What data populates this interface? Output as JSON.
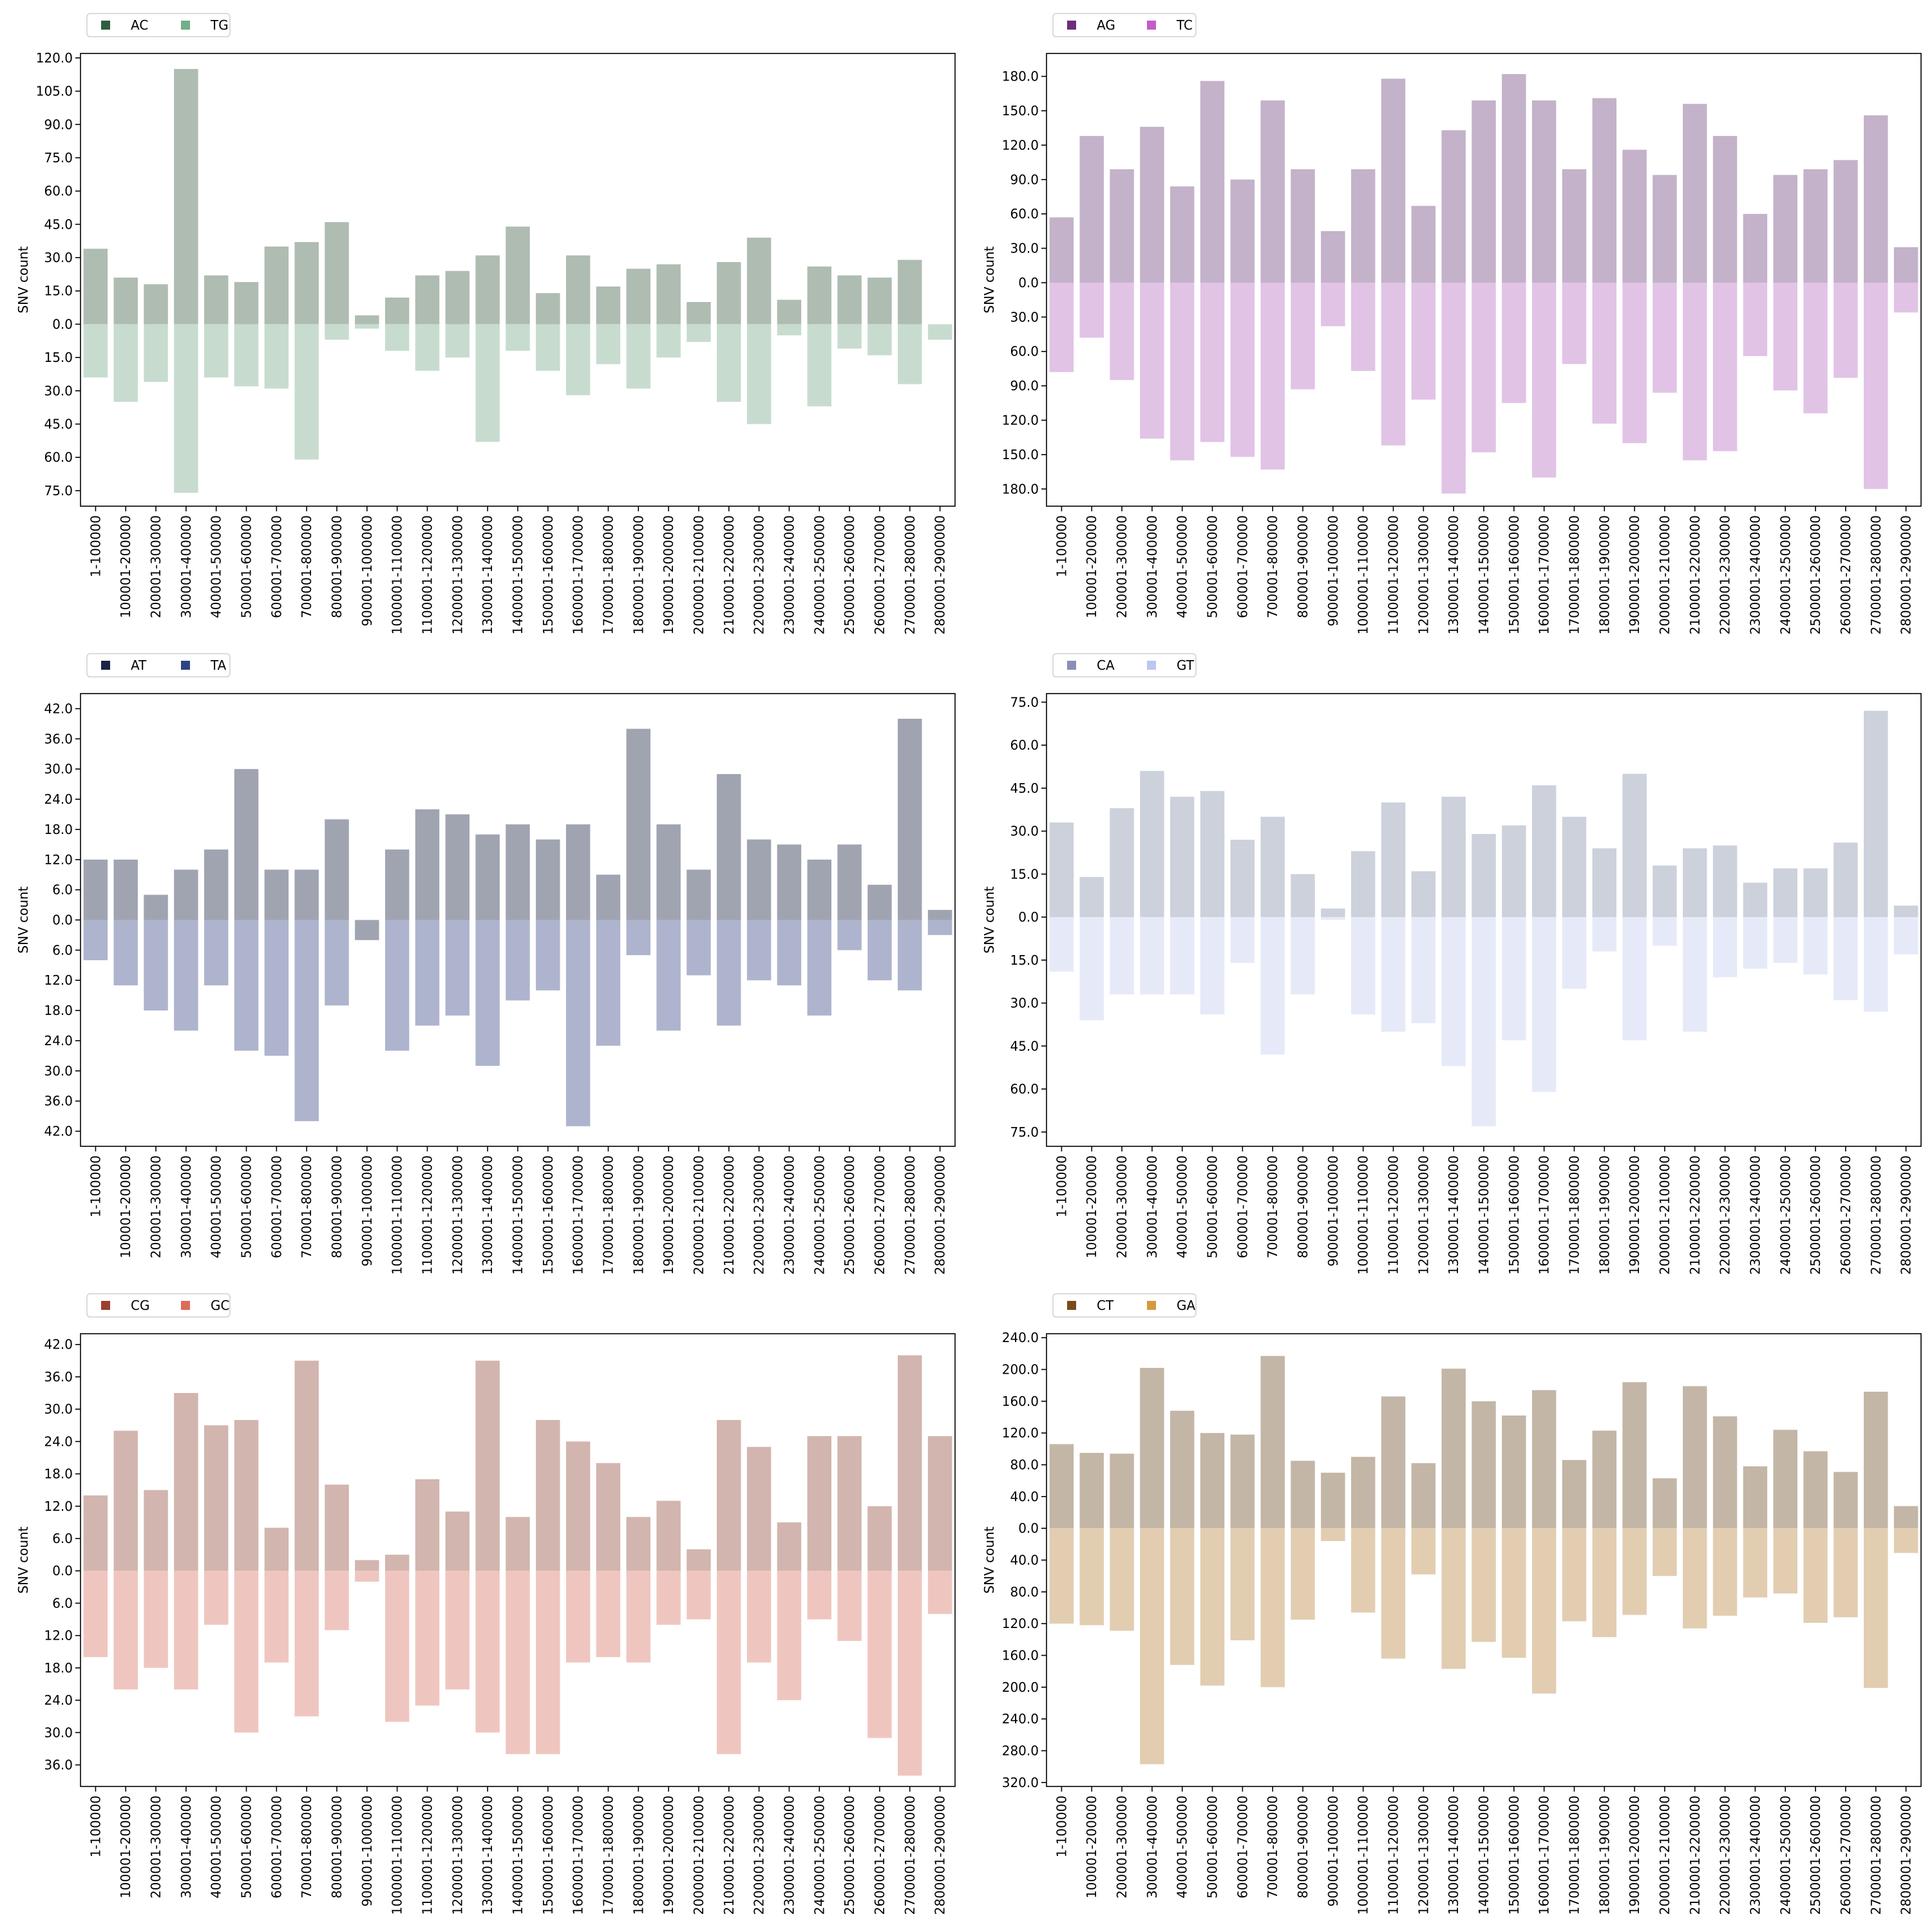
{
  "categories": [
    "1-100000",
    "100001-200000",
    "200001-300000",
    "300001-400000",
    "400001-500000",
    "500001-600000",
    "600001-700000",
    "700001-800000",
    "800001-900000",
    "900001-1000000",
    "1000001-1100000",
    "1100001-1200000",
    "1200001-1300000",
    "1300001-1400000",
    "1400001-1500000",
    "1500001-1600000",
    "1600001-1700000",
    "1700001-1800000",
    "1800001-1900000",
    "1900001-2000000",
    "2000001-2100000",
    "2100001-2200000",
    "2200001-2300000",
    "2300001-2400000",
    "2400001-2500000",
    "2500001-2600000",
    "2600001-2700000",
    "2700001-2800000",
    "2800001-2900000"
  ],
  "ylabel": "SNV count",
  "chart_data": [
    {
      "type": "bar",
      "ylabel": "SNV count",
      "ylim": [
        -82,
        122
      ],
      "yticks": [
        120,
        105,
        90,
        75,
        60,
        45,
        30,
        15,
        0,
        -15,
        -30,
        -45,
        -60,
        -75
      ],
      "series": [
        {
          "name": "AC",
          "legend_color": "#2f5e3f",
          "bar_color": "#afbcb1",
          "values": [
            34,
            21,
            18,
            115,
            22,
            19,
            35,
            37,
            46,
            4,
            12,
            22,
            24,
            31,
            44,
            14,
            31,
            17,
            25,
            27,
            10,
            28,
            39,
            11,
            26,
            22,
            21,
            29,
            0
          ]
        },
        {
          "name": "TG",
          "legend_color": "#6fb087",
          "bar_color": "#c7dccf",
          "values": [
            -24,
            -35,
            -26,
            -76,
            -24,
            -28,
            -29,
            -61,
            -7,
            -2,
            -12,
            -21,
            -15,
            -53,
            -12,
            -21,
            -32,
            -18,
            -29,
            -15,
            -8,
            -35,
            -45,
            -5,
            -37,
            -11,
            -14,
            -27,
            -7
          ]
        }
      ]
    },
    {
      "type": "bar",
      "ylabel": "SNV count",
      "ylim": [
        -195,
        200
      ],
      "yticks": [
        180,
        150,
        120,
        90,
        60,
        30,
        0,
        -30,
        -60,
        -90,
        -120,
        -150,
        -180
      ],
      "series": [
        {
          "name": "AG",
          "legend_color": "#6b2f7a",
          "bar_color": "#c3b2c9",
          "values": [
            57,
            128,
            99,
            136,
            84,
            176,
            90,
            159,
            99,
            45,
            99,
            178,
            67,
            133,
            159,
            182,
            159,
            99,
            161,
            116,
            94,
            156,
            128,
            60,
            94,
            99,
            107,
            146,
            31
          ]
        },
        {
          "name": "TC",
          "legend_color": "#c45bc6",
          "bar_color": "#e1c3e6",
          "values": [
            -78,
            -48,
            -85,
            -136,
            -155,
            -139,
            -152,
            -163,
            -93,
            -38,
            -77,
            -142,
            -102,
            -184,
            -148,
            -105,
            -170,
            -71,
            -123,
            -140,
            -96,
            -155,
            -147,
            -64,
            -94,
            -114,
            -83,
            -180,
            -26
          ]
        }
      ]
    },
    {
      "type": "bar",
      "ylabel": "SNV count",
      "ylim": [
        -45,
        45
      ],
      "yticks": [
        42,
        36,
        30,
        24,
        18,
        12,
        6,
        0,
        -6,
        -12,
        -18,
        -24,
        -30,
        -36,
        -42
      ],
      "series": [
        {
          "name": "AT",
          "legend_color": "#1b2346",
          "bar_color": "#a0a4b1",
          "values": [
            12,
            12,
            5,
            10,
            14,
            30,
            10,
            10,
            20,
            -4,
            14,
            22,
            21,
            17,
            19,
            16,
            19,
            9,
            38,
            19,
            10,
            29,
            16,
            15,
            12,
            15,
            7,
            40,
            2
          ]
        },
        {
          "name": "TA",
          "legend_color": "#2c4483",
          "bar_color": "#aeb4cd",
          "values": [
            -8,
            -13,
            -18,
            -22,
            -13,
            -26,
            -27,
            -40,
            -17,
            0,
            -26,
            -21,
            -19,
            -29,
            -16,
            -14,
            -41,
            -25,
            -7,
            -22,
            -11,
            -21,
            -12,
            -13,
            -19,
            -6,
            -12,
            -14,
            -3
          ]
        }
      ]
    },
    {
      "type": "bar",
      "ylabel": "SNV count",
      "ylim": [
        -80,
        78
      ],
      "yticks": [
        75,
        60,
        45,
        30,
        15,
        0,
        -15,
        -30,
        -45,
        -60,
        -75
      ],
      "series": [
        {
          "name": "CA",
          "legend_color": "#8a8fb7",
          "bar_color": "#ccd1dc",
          "values": [
            33,
            14,
            38,
            51,
            42,
            44,
            27,
            35,
            15,
            3,
            23,
            40,
            16,
            42,
            29,
            32,
            46,
            35,
            24,
            50,
            18,
            24,
            25,
            12,
            17,
            17,
            26,
            72,
            4
          ]
        },
        {
          "name": "GT",
          "legend_color": "#bcc6f0",
          "bar_color": "#e6eaf8",
          "values": [
            -19,
            -36,
            -27,
            -27,
            -27,
            -34,
            -16,
            -48,
            -27,
            -1,
            -34,
            -40,
            -37,
            -52,
            -73,
            -43,
            -61,
            -25,
            -12,
            -43,
            -10,
            -40,
            -21,
            -18,
            -16,
            -20,
            -29,
            -33,
            -13
          ]
        }
      ]
    },
    {
      "type": "bar",
      "ylabel": "SNV count",
      "ylim": [
        -40,
        44
      ],
      "yticks": [
        42,
        36,
        30,
        24,
        18,
        12,
        6,
        0,
        -6,
        -12,
        -18,
        -24,
        -30,
        -36
      ],
      "series": [
        {
          "name": "CG",
          "legend_color": "#9b3e2f",
          "bar_color": "#d2b5ae",
          "values": [
            14,
            26,
            15,
            33,
            27,
            28,
            8,
            39,
            16,
            2,
            3,
            17,
            11,
            39,
            10,
            28,
            24,
            20,
            10,
            13,
            4,
            28,
            23,
            9,
            25,
            25,
            12,
            40,
            25
          ]
        },
        {
          "name": "GC",
          "legend_color": "#e06a58",
          "bar_color": "#efc6bf",
          "values": [
            -16,
            -22,
            -18,
            -22,
            -10,
            -30,
            -17,
            -27,
            -11,
            -2,
            -28,
            -25,
            -22,
            -30,
            -34,
            -34,
            -17,
            -16,
            -17,
            -10,
            -9,
            -34,
            -17,
            -24,
            -9,
            -13,
            -31,
            -38,
            -8
          ]
        }
      ]
    },
    {
      "type": "bar",
      "ylabel": "SNV count",
      "ylim": [
        -325,
        245
      ],
      "yticks": [
        240,
        200,
        160,
        120,
        80,
        40,
        0,
        -40,
        -80,
        -120,
        -160,
        -200,
        -240,
        -280,
        -320
      ],
      "series": [
        {
          "name": "CT",
          "legend_color": "#7b4a1a",
          "bar_color": "#c3b6a6",
          "values": [
            106,
            95,
            94,
            202,
            148,
            120,
            118,
            217,
            85,
            70,
            90,
            166,
            82,
            201,
            160,
            142,
            174,
            86,
            123,
            184,
            63,
            179,
            141,
            78,
            124,
            97,
            71,
            172,
            28
          ]
        },
        {
          "name": "GA",
          "legend_color": "#d49a3c",
          "bar_color": "#e2cdb1",
          "values": [
            -120,
            -122,
            -129,
            -297,
            -172,
            -198,
            -141,
            -200,
            -115,
            -16,
            -106,
            -164,
            -58,
            -177,
            -143,
            -163,
            -208,
            -117,
            -137,
            -109,
            -60,
            -126,
            -110,
            -87,
            -82,
            -119,
            -112,
            -201,
            -31
          ]
        }
      ]
    }
  ]
}
